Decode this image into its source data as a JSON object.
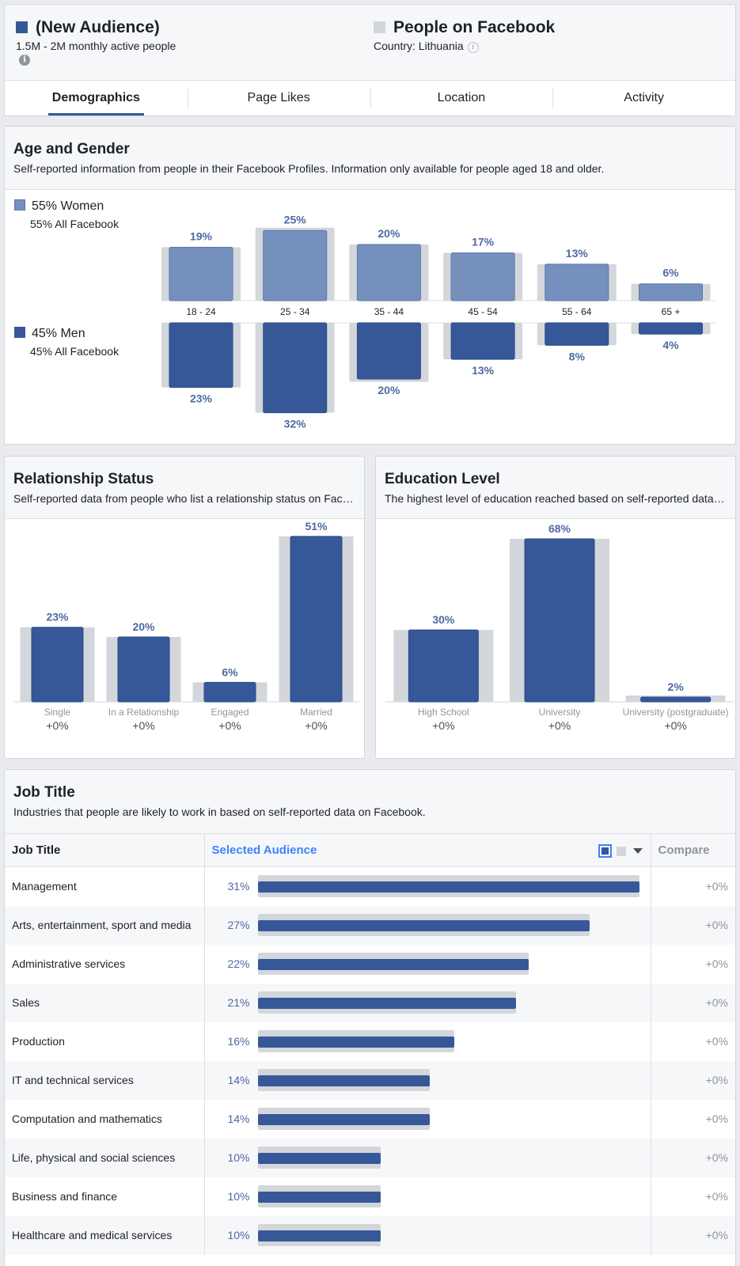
{
  "header": {
    "audience_title": "(New Audience)",
    "audience_sub": "1.5M - 2M monthly active people",
    "audience_color": "#365899",
    "compare_title": "People on Facebook",
    "compare_sub": "Country: Lithuania",
    "compare_color": "#d3d6db",
    "info_glyph": "i"
  },
  "tabs": [
    {
      "label": "Demographics",
      "active": true
    },
    {
      "label": "Page Likes"
    },
    {
      "label": "Location"
    },
    {
      "label": "Activity"
    }
  ],
  "age_gender": {
    "title": "Age and Gender",
    "subtitle": "Self-reported information from people in their Facebook Profiles. Information only available for people aged 18 and older.",
    "women_label": "55% Women",
    "women_sub": "55% All Facebook",
    "men_label": "45% Men",
    "men_sub": "45% All Facebook",
    "women_color": "#7690be",
    "men_color": "#365899"
  },
  "relationship": {
    "title": "Relationship Status",
    "subtitle": "Self-reported data from people who list a relationship status on Facebook."
  },
  "education": {
    "title": "Education Level",
    "subtitle": "The highest level of education reached based on self-reported data on Facebook."
  },
  "job": {
    "title": "Job Title",
    "subtitle": "Industries that people are likely to work in based on self-reported data on Facebook.",
    "col_job": "Job Title",
    "col_selected": "Selected Audience",
    "col_compare": "Compare"
  },
  "chart_data": [
    {
      "type": "bar",
      "categories": [
        "18 - 24",
        "25 - 34",
        "35 - 44",
        "45 - 54",
        "55 - 64",
        "65 +"
      ],
      "series": [
        {
          "name": "Women",
          "values": [
            19,
            25,
            20,
            17,
            13,
            6
          ],
          "labels": [
            "19%",
            "25%",
            "20%",
            "17%",
            "13%",
            "6%"
          ]
        },
        {
          "name": "Men",
          "values": [
            23,
            32,
            20,
            13,
            8,
            4
          ],
          "labels": [
            "23%",
            "32%",
            "20%",
            "13%",
            "8%",
            "4%"
          ]
        }
      ],
      "background_values": {
        "women": [
          19,
          26,
          20,
          17,
          13,
          6
        ],
        "men": [
          23,
          32,
          21,
          13,
          8,
          4
        ]
      }
    },
    {
      "type": "bar",
      "categories": [
        "Single",
        "In a Relationship",
        "Engaged",
        "Married"
      ],
      "values": [
        23,
        20,
        6,
        51
      ],
      "labels": [
        "23%",
        "20%",
        "6%",
        "51%"
      ],
      "compare": [
        "+0%",
        "+0%",
        "+0%",
        "+0%"
      ]
    },
    {
      "type": "bar",
      "categories": [
        "High School",
        "University",
        "University (postgraduate)"
      ],
      "values": [
        30,
        68,
        2
      ],
      "labels": [
        "30%",
        "68%",
        "2%"
      ],
      "compare": [
        "+0%",
        "+0%",
        "+0%"
      ]
    },
    {
      "type": "bar",
      "categories": [
        "Management",
        "Arts, entertainment, sport and media",
        "Administrative services",
        "Sales",
        "Production",
        "IT and technical services",
        "Computation and mathematics",
        "Life, physical and social sciences",
        "Business and finance",
        "Healthcare and medical services"
      ],
      "values": [
        31,
        27,
        22,
        21,
        16,
        14,
        14,
        10,
        10,
        10
      ],
      "labels": [
        "31%",
        "27%",
        "22%",
        "21%",
        "16%",
        "14%",
        "14%",
        "10%",
        "10%",
        "10%"
      ],
      "compare": [
        "+0%",
        "+0%",
        "+0%",
        "+0%",
        "+0%",
        "+0%",
        "+0%",
        "+0%",
        "+0%",
        "+0%"
      ]
    }
  ]
}
